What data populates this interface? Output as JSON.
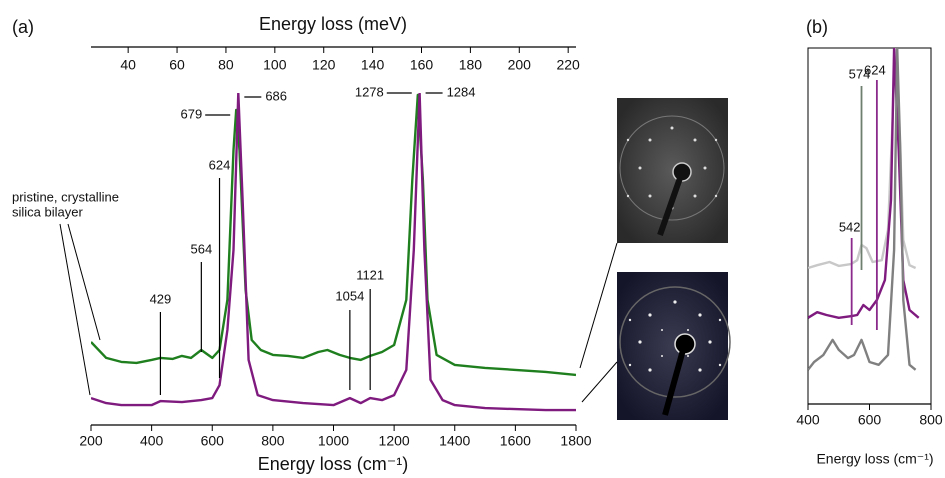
{
  "chart_data": [
    {
      "type": "line",
      "panel_label": "(a)",
      "xlabel": "Energy loss (cm⁻¹)",
      "x2label": "Energy loss (meV)",
      "xlim": [
        200,
        1800
      ],
      "xticks": [
        200,
        400,
        600,
        800,
        1000,
        1200,
        1400,
        1600,
        1800
      ],
      "x2lim": [
        24.8,
        223.2
      ],
      "x2ticks": [
        40,
        60,
        80,
        100,
        120,
        140,
        160,
        180,
        200,
        220
      ],
      "ylim": [
        0,
        100
      ],
      "series": [
        {
          "color": "#1f7f1f",
          "x": [
            200,
            250,
            300,
            350,
            400,
            429,
            470,
            500,
            530,
            564,
            600,
            624,
            650,
            670,
            679,
            690,
            710,
            730,
            760,
            800,
            850,
            900,
            950,
            980,
            1020,
            1054,
            1090,
            1121,
            1160,
            1200,
            1240,
            1260,
            1278,
            1295,
            1310,
            1340,
            1400,
            1500,
            1600,
            1700,
            1800
          ],
          "values": [
            25.0,
            20.2,
            19.0,
            18.7,
            19.6,
            20.2,
            19.9,
            20.8,
            20.2,
            22.6,
            20.2,
            22.6,
            37.7,
            82.8,
            94.9,
            82.8,
            40.7,
            25.6,
            22.6,
            21.1,
            20.8,
            20.2,
            22.0,
            22.6,
            21.1,
            20.2,
            19.6,
            20.8,
            22.0,
            24.1,
            37.7,
            73.8,
            99.4,
            73.8,
            37.7,
            21.1,
            18.1,
            17.2,
            16.6,
            16.0,
            15.1
          ]
        },
        {
          "color": "#7f1a7f",
          "x": [
            200,
            250,
            300,
            400,
            429,
            500,
            564,
            600,
            624,
            650,
            670,
            686,
            700,
            720,
            750,
            800,
            900,
            1000,
            1054,
            1090,
            1121,
            1160,
            1200,
            1240,
            1265,
            1284,
            1300,
            1320,
            1360,
            1400,
            1500,
            1600,
            1700,
            1800
          ],
          "values": [
            8.1,
            6.6,
            6.0,
            6.0,
            7.2,
            6.9,
            7.5,
            8.1,
            12.0,
            28.6,
            52.7,
            100,
            67.8,
            19.6,
            9.0,
            7.5,
            6.6,
            6.0,
            8.1,
            6.6,
            8.1,
            7.5,
            9.0,
            16.6,
            52.7,
            100,
            52.7,
            13.6,
            7.5,
            6.0,
            5.1,
            4.8,
            4.5,
            4.5
          ]
        }
      ],
      "peak_labels": [
        429,
        564,
        624,
        679,
        686,
        1054,
        1121,
        1278,
        1284
      ],
      "sample_label": [
        "pristine, crystalline",
        "silica bilayer"
      ]
    },
    {
      "type": "line",
      "panel_label": "(b)",
      "xlabel": "Energy loss (cm⁻¹)",
      "xlim": [
        400,
        800
      ],
      "xticks": [
        400,
        600,
        800
      ],
      "ylim": [
        0,
        100
      ],
      "series": [
        {
          "color": "#c8c8c8",
          "x": [
            400,
            430,
            470,
            500,
            540,
            560,
            574,
            590,
            610,
            640,
            660,
            675,
            685,
            700,
            710,
            730,
            750
          ],
          "values": [
            38.2,
            39.0,
            39.9,
            38.8,
            39.3,
            40.4,
            44.7,
            43.8,
            39.9,
            40.4,
            48.9,
            79.8,
            100,
            71.3,
            46.1,
            39.0,
            38.2
          ]
        },
        {
          "color": "#7f1a7f",
          "x": [
            400,
            430,
            460,
            500,
            542,
            560,
            580,
            600,
            624,
            650,
            670,
            680,
            695,
            710,
            730,
            760
          ],
          "values": [
            24.2,
            25.8,
            25.0,
            24.2,
            24.7,
            25.0,
            27.8,
            26.4,
            29.2,
            34.8,
            57.3,
            100,
            71.3,
            34.8,
            26.4,
            24.2
          ]
        },
        {
          "color": "#808080",
          "x": [
            400,
            420,
            450,
            480,
            500,
            530,
            550,
            574,
            580,
            600,
            630,
            660,
            680,
            690,
            700,
            710,
            730,
            750
          ],
          "values": [
            9.6,
            11.8,
            13.8,
            18.0,
            15.2,
            12.9,
            13.8,
            18.0,
            16.6,
            11.8,
            11.0,
            13.8,
            43.3,
            100,
            71.3,
            29.2,
            11.0,
            9.6
          ]
        }
      ],
      "markers": [
        {
          "value": 542,
          "color": "#8b2a8b"
        },
        {
          "value": 574,
          "color": "#6f7f6f"
        },
        {
          "value": 624,
          "color": "#8b2a8b"
        }
      ]
    }
  ]
}
